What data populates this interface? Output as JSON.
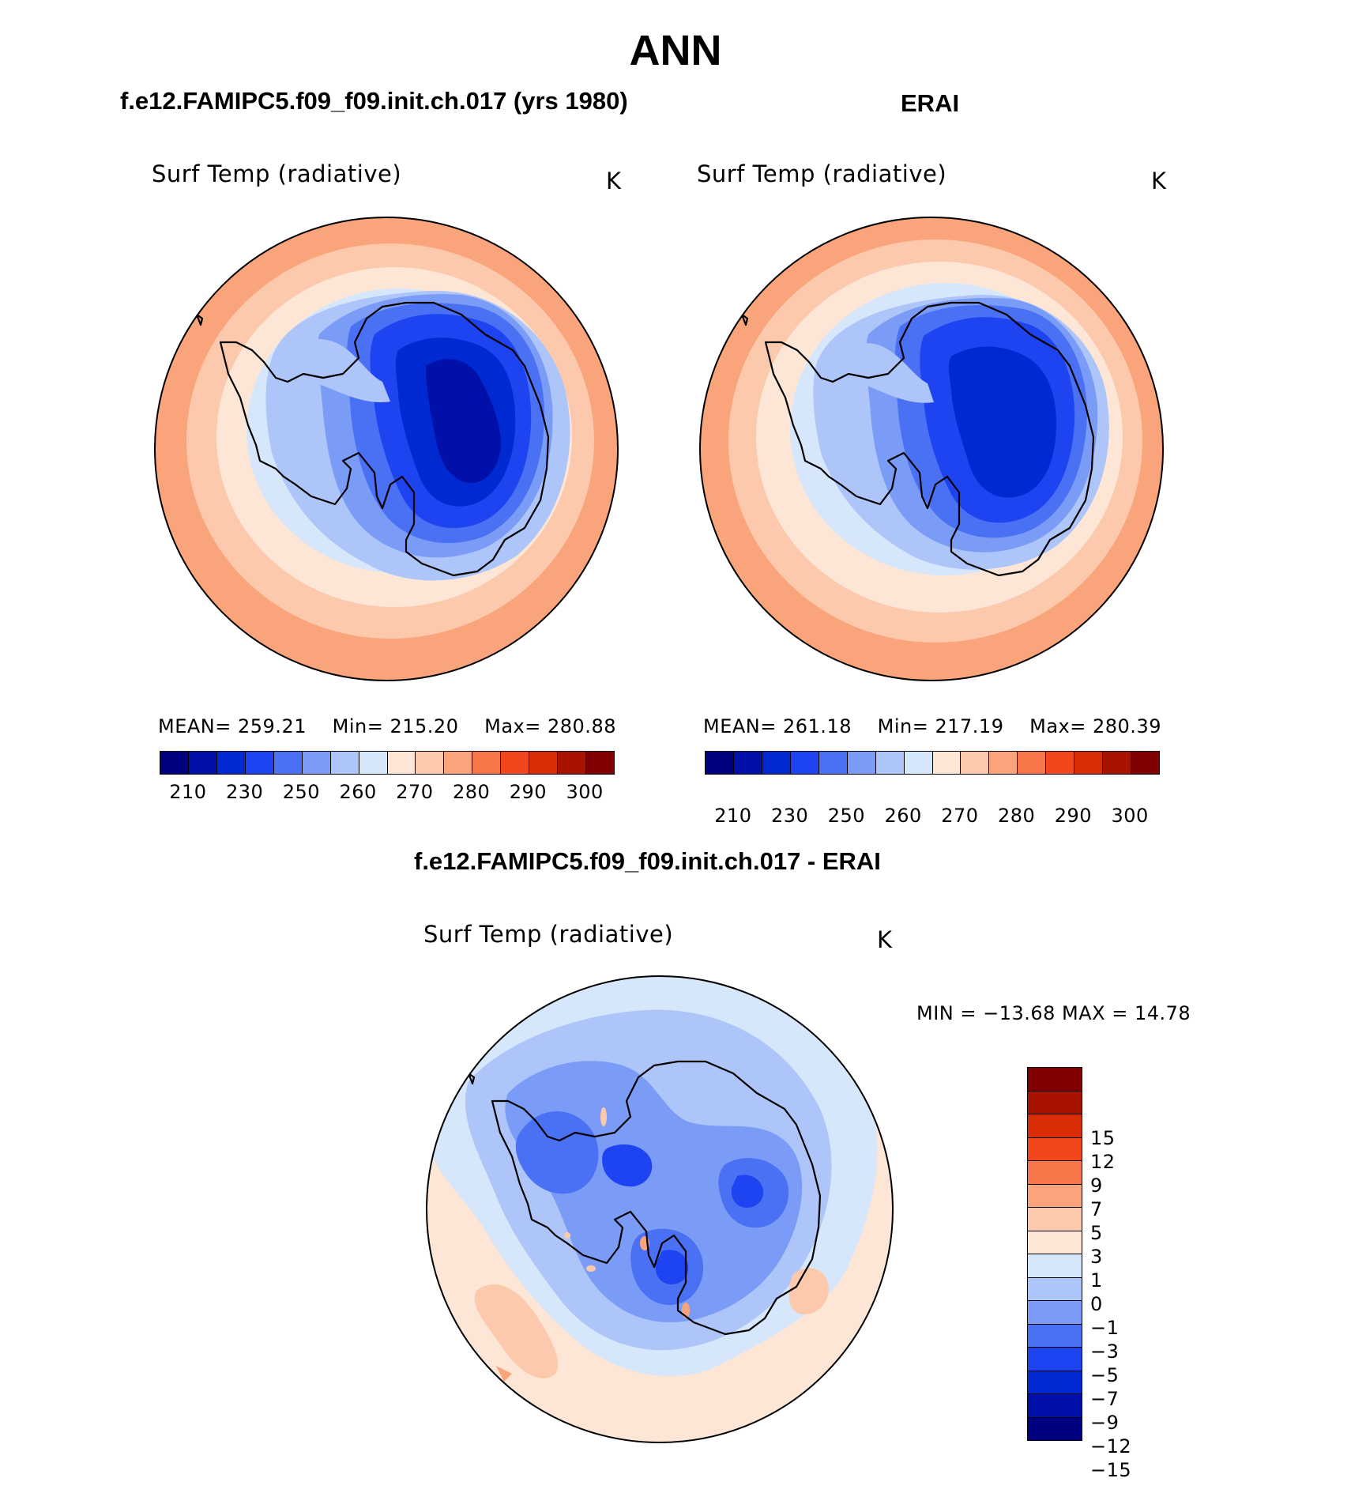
{
  "page_title": "ANN",
  "panels": [
    {
      "title": "f.e12.FAMIPC5.f09_f09.init.ch.017 (yrs 1980)",
      "variable": "Surf Temp (radiative)",
      "units": "K",
      "stats": {
        "mean_label": "MEAN=",
        "mean": "259.21",
        "min_label": "Min=",
        "min": "215.20",
        "max_label": "Max=",
        "max": "280.88"
      }
    },
    {
      "title": "ERAI",
      "variable": "Surf Temp (radiative)",
      "units": "K",
      "stats": {
        "mean_label": "MEAN=",
        "mean": "261.18",
        "min_label": "Min=",
        "min": "217.19",
        "max_label": "Max=",
        "max": "280.39"
      }
    }
  ],
  "colorbar_abs": {
    "colors": [
      "#00007f",
      "#0010a8",
      "#0029d1",
      "#1d44f0",
      "#4a70f4",
      "#7b9cf6",
      "#adc5f8",
      "#d6e6fb",
      "#fde6d6",
      "#fcc9ad",
      "#faa47c",
      "#f7774a",
      "#f4461d",
      "#d92d08",
      "#a81300",
      "#7f0000"
    ],
    "tick_labels": [
      "210",
      "230",
      "250",
      "260",
      "270",
      "280",
      "290",
      "300"
    ]
  },
  "difference_panel": {
    "title": "f.e12.FAMIPC5.f09_f09.init.ch.017 - ERAI",
    "variable": "Surf Temp (radiative)",
    "units": "K",
    "stats_text": "MIN = −13.68 MAX =   14.78",
    "colorbar": {
      "colors_top_to_bottom": [
        "#7f0000",
        "#a81300",
        "#d92d08",
        "#f4461d",
        "#f7774a",
        "#faa47c",
        "#fcc9ad",
        "#fde6d6",
        "#d6e6fb",
        "#adc5f8",
        "#7b9cf6",
        "#4a70f4",
        "#1d44f0",
        "#0029d1",
        "#0010a8",
        "#00007f"
      ],
      "tick_labels_top_to_bottom": [
        "15",
        "12",
        "9",
        "7",
        "5",
        "3",
        "1",
        "0",
        "−1",
        "−3",
        "−5",
        "−7",
        "−9",
        "−12",
        "−15"
      ]
    }
  },
  "map_colors": {
    "warm_outer": "#faa47c",
    "warm_mid": "#fcc9ad",
    "warm_light": "#fde6d6",
    "cool_light": "#d6e6fb",
    "cool_mid": "#adc5f8",
    "cool_3": "#7b9cf6",
    "cool_4": "#4a70f4",
    "cool_5": "#1d44f0",
    "cool_6": "#0029d1",
    "cool_7": "#0010a8",
    "coast": "#000000"
  }
}
